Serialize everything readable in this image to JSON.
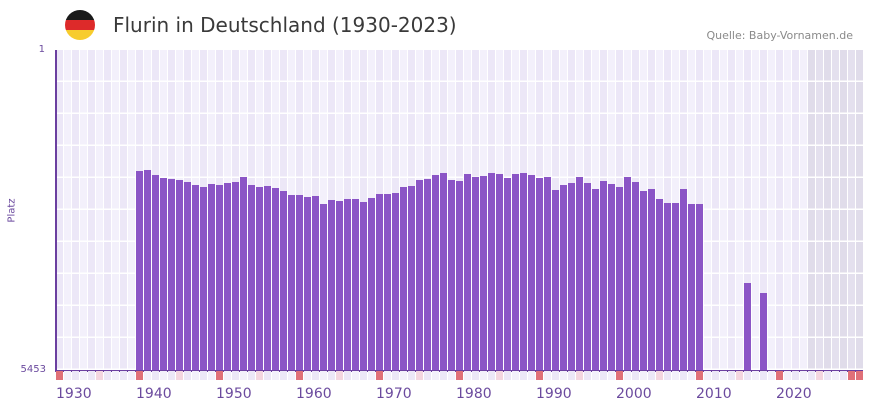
{
  "header": {
    "title": "Flurin in Deutschland (1930-2023)",
    "source": "Quelle: Baby-Vornamen.de",
    "flag_colors": [
      "#1a1a1a",
      "#dd2a2a",
      "#f7cc2e"
    ]
  },
  "axes": {
    "y_top_label": "1",
    "y_bottom_label": "5453",
    "y_title": "Platz",
    "x_labels": [
      "1930",
      "1940",
      "1950",
      "1960",
      "1970",
      "1980",
      "1990",
      "2000",
      "2010",
      "2020"
    ]
  },
  "colors": {
    "bar": "#8b55c6",
    "axis": "#6b3fa0",
    "grid_a": "#f3f0fb",
    "grid_b": "#ece7f7",
    "future_shade": "#e4e0ee",
    "decade_marker": "#e07078",
    "midmarker": "#f4d6e0"
  },
  "chart_data": {
    "type": "bar",
    "title": "Flurin in Deutschland (1930-2023)",
    "xlabel": "",
    "ylabel": "Platz",
    "ylim": [
      5453,
      1
    ],
    "y_inverted": true,
    "xlim": [
      1930,
      2029
    ],
    "grid": true,
    "legend": null,
    "x": [
      1940,
      1941,
      1942,
      1943,
      1944,
      1945,
      1946,
      1947,
      1948,
      1949,
      1950,
      1951,
      1952,
      1953,
      1954,
      1955,
      1956,
      1957,
      1958,
      1959,
      1960,
      1961,
      1962,
      1963,
      1964,
      1965,
      1966,
      1967,
      1968,
      1969,
      1970,
      1971,
      1972,
      1973,
      1974,
      1975,
      1976,
      1977,
      1978,
      1979,
      1980,
      1981,
      1982,
      1983,
      1984,
      1985,
      1986,
      1987,
      1988,
      1989,
      1990,
      1991,
      1992,
      1993,
      1994,
      1995,
      1996,
      1997,
      1998,
      1999,
      2000,
      2001,
      2002,
      2003,
      2004,
      2005,
      2006,
      2007,
      2008,
      2009,
      2010,
      2016,
      2018
    ],
    "values": [
      2062,
      2045,
      2130,
      2181,
      2198,
      2215,
      2249,
      2300,
      2334,
      2283,
      2300,
      2266,
      2249,
      2164,
      2300,
      2334,
      2317,
      2351,
      2402,
      2470,
      2470,
      2504,
      2487,
      2624,
      2556,
      2573,
      2539,
      2539,
      2590,
      2521,
      2453,
      2453,
      2436,
      2334,
      2317,
      2215,
      2198,
      2130,
      2096,
      2215,
      2232,
      2113,
      2164,
      2147,
      2096,
      2113,
      2181,
      2113,
      2096,
      2130,
      2181,
      2164,
      2385,
      2300,
      2266,
      2164,
      2266,
      2368,
      2232,
      2283,
      2334,
      2164,
      2249,
      2402,
      2368,
      2539,
      2607,
      2607,
      2368,
      2624,
      2624,
      3969,
      4139
    ]
  }
}
